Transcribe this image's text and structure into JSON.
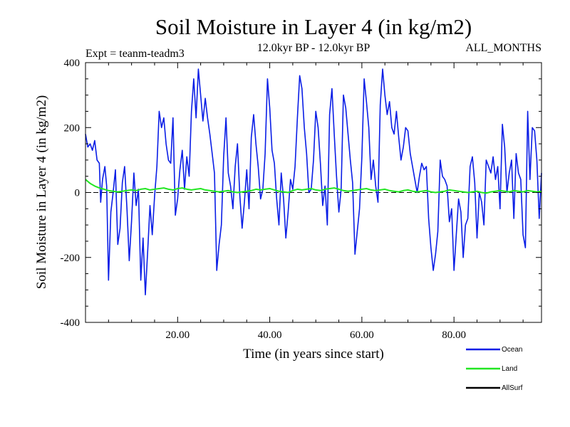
{
  "title": "Soil Moisture in Layer 4 (in kg/m2)",
  "expt_label": "Expt = teanm-teadm3",
  "period_label": "12.0kyr BP - 12.0kyr BP",
  "months_label": "ALL_MONTHS",
  "colors": {
    "ocean": "#0a1ee6",
    "land": "#22e622",
    "allsurf": "#000000",
    "axis": "#000000"
  },
  "chart_data": {
    "type": "line",
    "title": "Soil Moisture in Layer 4 (in kg/m2)",
    "xlabel": "Time (in years since start)",
    "ylabel": "Soil Moisture in Layer 4 (in kg/m2)",
    "xlim": [
      0,
      99
    ],
    "ylim": [
      -400,
      400
    ],
    "x_ticks": [
      20,
      40,
      60,
      80
    ],
    "x_tick_labels": [
      "20.00",
      "40.00",
      "60.00",
      "80.00"
    ],
    "y_ticks": [
      -400,
      -200,
      0,
      200,
      400
    ],
    "y_tick_labels": [
      "-400",
      "-200",
      "0",
      "200",
      "400"
    ],
    "zero_line": "dashed",
    "legend_position": "bottom-right",
    "series": [
      {
        "name": "Ocean",
        "color": "#0a1ee6",
        "x": [
          0,
          0.5,
          1,
          1.5,
          2,
          2.5,
          3,
          3.3,
          3.7,
          4.2,
          4.6,
          5,
          5.5,
          6,
          6.5,
          7,
          7.5,
          8,
          8.5,
          9,
          9.5,
          10,
          10.5,
          11,
          11.5,
          12,
          12.5,
          13,
          13.5,
          14,
          14.5,
          15,
          15.5,
          16,
          16.5,
          17,
          17.5,
          18,
          18.5,
          19,
          19.5,
          20,
          20.5,
          21,
          21.5,
          22,
          22.5,
          23,
          23.5,
          24,
          24.5,
          25,
          25.5,
          26,
          26.5,
          27,
          27.5,
          28,
          28.5,
          29,
          29.5,
          30,
          30.5,
          31,
          31.5,
          32,
          32.5,
          33,
          33.5,
          34,
          34.5,
          35,
          35.5,
          36,
          36.5,
          37,
          37.5,
          38,
          38.5,
          39,
          39.5,
          40,
          40.5,
          41,
          41.5,
          42,
          42.5,
          43,
          43.5,
          44,
          44.5,
          45,
          45.5,
          46,
          46.5,
          47,
          47.5,
          48,
          48.5,
          49,
          49.5,
          50,
          50.5,
          51,
          51.5,
          52,
          52.5,
          53,
          53.5,
          54,
          54.5,
          55,
          55.5,
          56,
          56.5,
          57,
          57.5,
          58,
          58.5,
          59,
          59.5,
          60,
          60.5,
          61,
          61.5,
          62,
          62.5,
          63,
          63.5,
          64,
          64.5,
          65,
          65.5,
          66,
          66.5,
          67,
          67.5,
          68,
          68.5,
          69,
          69.5,
          70,
          70.5,
          71,
          71.5,
          72,
          72.5,
          73,
          73.5,
          74,
          74.5,
          75,
          75.5,
          76,
          76.5,
          77,
          77.5,
          78,
          78.5,
          79,
          79.5,
          80,
          80.5,
          81,
          81.5,
          82,
          82.5,
          83,
          83.5,
          84,
          84.5,
          85,
          85.5,
          86,
          86.5,
          87,
          87.5,
          88,
          88.5,
          89,
          89.5,
          90,
          90.5,
          91,
          91.5,
          92,
          92.5,
          93,
          93.5,
          94,
          94.5,
          95,
          95.5,
          96,
          96.5,
          97,
          97.5,
          98,
          98.5,
          99
        ],
        "values": [
          180,
          140,
          150,
          130,
          160,
          100,
          90,
          -30,
          40,
          80,
          20,
          -270,
          -60,
          0,
          70,
          -160,
          -110,
          30,
          80,
          -50,
          -210,
          -90,
          60,
          -40,
          10,
          -270,
          -140,
          -315,
          -180,
          -40,
          -130,
          -10,
          80,
          250,
          200,
          230,
          150,
          100,
          90,
          230,
          -70,
          -20,
          70,
          130,
          10,
          110,
          50,
          250,
          350,
          230,
          380,
          300,
          220,
          290,
          230,
          180,
          120,
          60,
          -240,
          -160,
          -100,
          110,
          230,
          60,
          20,
          -50,
          80,
          150,
          -10,
          -110,
          -30,
          70,
          -50,
          170,
          240,
          150,
          80,
          -20,
          10,
          120,
          350,
          260,
          130,
          90,
          -20,
          -100,
          60,
          -20,
          -140,
          -60,
          40,
          10,
          80,
          230,
          360,
          320,
          200,
          120,
          0,
          10,
          100,
          250,
          200,
          90,
          -40,
          20,
          -100,
          240,
          320,
          180,
          50,
          -60,
          10,
          300,
          260,
          180,
          100,
          30,
          -190,
          -120,
          -50,
          110,
          350,
          280,
          200,
          40,
          100,
          20,
          -30,
          270,
          380,
          300,
          240,
          280,
          200,
          180,
          250,
          170,
          100,
          140,
          200,
          190,
          120,
          80,
          40,
          0,
          50,
          90,
          70,
          80,
          -80,
          -170,
          -240,
          -190,
          -120,
          100,
          50,
          40,
          20,
          -90,
          -50,
          -240,
          -130,
          -20,
          -60,
          -200,
          -100,
          -80,
          80,
          110,
          30,
          -140,
          0,
          -30,
          -100,
          100,
          80,
          60,
          110,
          40,
          80,
          -50,
          210,
          140,
          0,
          60,
          100,
          -80,
          120,
          60,
          40,
          -130,
          -170,
          250,
          40,
          200,
          190,
          100,
          -80,
          60
        ]
      },
      {
        "name": "Land",
        "color": "#22e622",
        "x": [
          0,
          1,
          2,
          3,
          4,
          5,
          6,
          7,
          8,
          9,
          10,
          11,
          12,
          13,
          14,
          15,
          16,
          17,
          18,
          19,
          20,
          21,
          22,
          23,
          24,
          25,
          26,
          27,
          28,
          29,
          30,
          31,
          32,
          33,
          34,
          35,
          36,
          37,
          38,
          39,
          40,
          41,
          42,
          43,
          44,
          45,
          46,
          47,
          48,
          49,
          50,
          51,
          52,
          53,
          54,
          55,
          56,
          57,
          58,
          59,
          60,
          61,
          62,
          63,
          64,
          65,
          66,
          67,
          68,
          69,
          70,
          71,
          72,
          73,
          74,
          75,
          76,
          77,
          78,
          79,
          80,
          81,
          82,
          83,
          84,
          85,
          86,
          87,
          88,
          89,
          90,
          91,
          92,
          93,
          94,
          95,
          96,
          97,
          98,
          99
        ],
        "values": [
          40,
          28,
          20,
          14,
          10,
          6,
          4,
          2,
          4,
          6,
          8,
          6,
          10,
          12,
          8,
          10,
          12,
          14,
          10,
          8,
          12,
          14,
          10,
          8,
          10,
          12,
          8,
          6,
          4,
          2,
          4,
          6,
          2,
          0,
          2,
          4,
          6,
          10,
          8,
          10,
          12,
          8,
          4,
          2,
          0,
          6,
          10,
          8,
          10,
          12,
          8,
          6,
          10,
          12,
          14,
          10,
          6,
          4,
          6,
          8,
          10,
          12,
          8,
          6,
          8,
          10,
          6,
          4,
          2,
          6,
          8,
          4,
          2,
          4,
          6,
          2,
          0,
          2,
          4,
          8,
          6,
          4,
          2,
          0,
          2,
          4,
          0,
          -2,
          2,
          4,
          6,
          4,
          2,
          6,
          4,
          2,
          6,
          4,
          2,
          4
        ]
      },
      {
        "name": "AllSurf",
        "color": "#000000",
        "x": [],
        "values": []
      }
    ]
  }
}
